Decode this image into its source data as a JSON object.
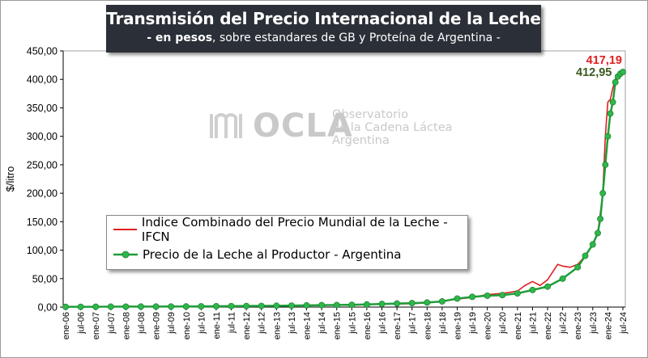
{
  "title": "Transmisión del Precio Internacional de la Leche",
  "subtitle_bold": "- en pesos",
  "subtitle_rest": ", sobre estandares de GB y Proteína de  Argentina -",
  "watermark": {
    "logo_text": "OCLA",
    "line1": "Observatorio",
    "line2": "de la Cadena Láctea",
    "line3": "Argentina"
  },
  "colors": {
    "ifcn": "#e02020",
    "argentina": "#1e9e3a",
    "argentina_marker": "#2db84a"
  },
  "chart_data": {
    "type": "line",
    "ylabel": "$/litro",
    "ylim": [
      0,
      450
    ],
    "yticks": [
      "0,00",
      "50,00",
      "100,00",
      "150,00",
      "200,00",
      "250,00",
      "300,00",
      "350,00",
      "400,00",
      "450,00"
    ],
    "x_tick_labels": [
      "ene-06",
      "jul-06",
      "ene-07",
      "jul-07",
      "ene-08",
      "jul-08",
      "ene-09",
      "jul-09",
      "ene-10",
      "jul-10",
      "ene-11",
      "jul-11",
      "ene-12",
      "jul-12",
      "ene-13",
      "jul-13",
      "ene-14",
      "jul-14",
      "ene-15",
      "jul-15",
      "ene-16",
      "jul-16",
      "ene-17",
      "jul-17",
      "ene-18",
      "jul-18",
      "ene-19",
      "jul-19",
      "ene-20",
      "jul-20",
      "ene-21",
      "jul-21",
      "ene-22",
      "jul-22",
      "ene-23",
      "jul-23",
      "ene-24",
      "jul-24"
    ],
    "x_start": "ene-06",
    "x_end": "jul-24",
    "legend_placement": "center-left",
    "grid": false,
    "series": [
      {
        "name": "Indice Combinado del Precio Mundial de la Leche - IFCN",
        "color": "#e02020",
        "marker": false,
        "last_label": "417,19",
        "points": [
          [
            "ene-06",
            0.6
          ],
          [
            "jul-06",
            0.7
          ],
          [
            "ene-07",
            0.8
          ],
          [
            "jul-07",
            1.0
          ],
          [
            "ene-08",
            1.1
          ],
          [
            "jul-08",
            1.2
          ],
          [
            "ene-09",
            1.0
          ],
          [
            "jul-09",
            1.1
          ],
          [
            "ene-10",
            1.3
          ],
          [
            "jul-10",
            1.5
          ],
          [
            "ene-11",
            1.7
          ],
          [
            "jul-11",
            1.8
          ],
          [
            "ene-12",
            1.9
          ],
          [
            "jul-12",
            2.0
          ],
          [
            "ene-13",
            2.3
          ],
          [
            "jul-13",
            2.6
          ],
          [
            "ene-14",
            3.2
          ],
          [
            "jul-14",
            3.5
          ],
          [
            "ene-15",
            3.3
          ],
          [
            "jul-15",
            3.3
          ],
          [
            "ene-16",
            4.5
          ],
          [
            "jul-16",
            5.0
          ],
          [
            "ene-17",
            5.5
          ],
          [
            "jul-17",
            6.0
          ],
          [
            "ene-18",
            7.5
          ],
          [
            "jul-18",
            10.0
          ],
          [
            "ene-19",
            14.0
          ],
          [
            "jul-19",
            17.0
          ],
          [
            "ene-20",
            22.0
          ],
          [
            "jul-20",
            24.0
          ],
          [
            "ene-21",
            28.0
          ],
          [
            "abr-21",
            38.0
          ],
          [
            "jul-21",
            45.0
          ],
          [
            "oct-21",
            38.0
          ],
          [
            "ene-22",
            48.0
          ],
          [
            "may-22",
            75.0
          ],
          [
            "jul-22",
            72.0
          ],
          [
            "oct-22",
            70.0
          ],
          [
            "ene-23",
            75.0
          ],
          [
            "abr-23",
            90.0
          ],
          [
            "jul-23",
            110.0
          ],
          [
            "sep-23",
            130.0
          ],
          [
            "nov-23",
            200.0
          ],
          [
            "dic-23",
            300.0
          ],
          [
            "ene-24",
            360.0
          ],
          [
            "feb-24",
            365.0
          ],
          [
            "mar-24",
            385.0
          ],
          [
            "abr-24",
            400.0
          ],
          [
            "may-24",
            408.0
          ],
          [
            "jun-24",
            414.0
          ],
          [
            "jul-24",
            417.19
          ]
        ]
      },
      {
        "name": "Precio de la Leche al Productor - Argentina",
        "color": "#1e9e3a",
        "marker": true,
        "last_label": "412,95",
        "points": [
          [
            "ene-06",
            0.5
          ],
          [
            "jul-06",
            0.5
          ],
          [
            "ene-07",
            0.6
          ],
          [
            "jul-07",
            0.7
          ],
          [
            "ene-08",
            0.8
          ],
          [
            "jul-08",
            0.9
          ],
          [
            "ene-09",
            0.9
          ],
          [
            "jul-09",
            1.0
          ],
          [
            "ene-10",
            1.1
          ],
          [
            "jul-10",
            1.3
          ],
          [
            "ene-11",
            1.5
          ],
          [
            "jul-11",
            1.7
          ],
          [
            "ene-12",
            1.9
          ],
          [
            "jul-12",
            2.1
          ],
          [
            "ene-13",
            2.3
          ],
          [
            "jul-13",
            2.6
          ],
          [
            "ene-14",
            3.0
          ],
          [
            "jul-14",
            3.4
          ],
          [
            "ene-15",
            3.7
          ],
          [
            "jul-15",
            4.0
          ],
          [
            "ene-16",
            4.6
          ],
          [
            "jul-16",
            5.5
          ],
          [
            "ene-17",
            6.2
          ],
          [
            "jul-17",
            7.0
          ],
          [
            "ene-18",
            8.0
          ],
          [
            "jul-18",
            10.0
          ],
          [
            "ene-19",
            15.0
          ],
          [
            "jul-19",
            18.0
          ],
          [
            "ene-20",
            20.0
          ],
          [
            "jul-20",
            21.0
          ],
          [
            "ene-21",
            24.0
          ],
          [
            "jul-21",
            30.0
          ],
          [
            "ene-22",
            36.0
          ],
          [
            "jul-22",
            50.0
          ],
          [
            "ene-23",
            70.0
          ],
          [
            "abr-23",
            90.0
          ],
          [
            "jul-23",
            110.0
          ],
          [
            "sep-23",
            130.0
          ],
          [
            "oct-23",
            155.0
          ],
          [
            "nov-23",
            200.0
          ],
          [
            "dic-23",
            250.0
          ],
          [
            "ene-24",
            300.0
          ],
          [
            "feb-24",
            340.0
          ],
          [
            "mar-24",
            360.0
          ],
          [
            "abr-24",
            395.0
          ],
          [
            "may-24",
            405.0
          ],
          [
            "jun-24",
            410.0
          ],
          [
            "jul-24",
            412.95
          ]
        ]
      }
    ]
  }
}
